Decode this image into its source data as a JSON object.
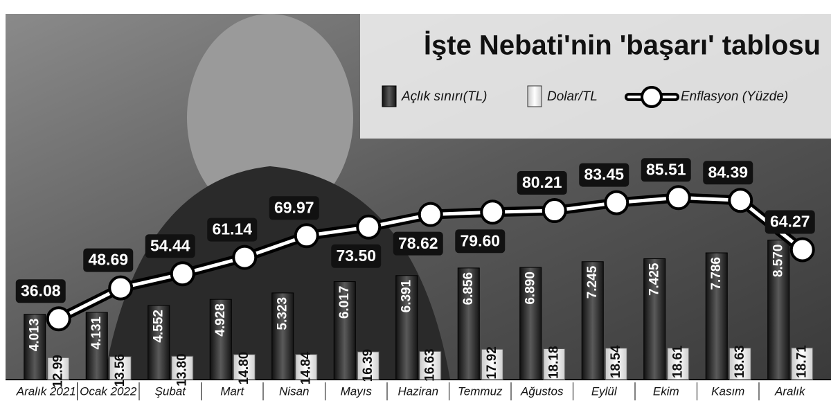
{
  "chart_data": {
    "type": "bar-line",
    "title": "İşte Nebati'nin 'başarı' tablosu",
    "categories": [
      "Aralık 2021",
      "Ocak 2022",
      "Şubat",
      "Mart",
      "Nisan",
      "Mayıs",
      "Haziran",
      "Temmuz",
      "Ağustos",
      "Eylül",
      "Ekim",
      "Kasım",
      "Aralık"
    ],
    "series": [
      {
        "name": "Açlık sınırı(TL)",
        "color": "#2e2e2e",
        "kind": "bar",
        "values": [
          4013,
          4131,
          4552,
          4928,
          5323,
          6017,
          6391,
          6856,
          6890,
          7245,
          7425,
          7786,
          8570
        ],
        "value_labels": [
          "4.013",
          "4.131",
          "4.552",
          "4.928",
          "5.323",
          "6.017",
          "6.391",
          "6.856",
          "6.890",
          "7.245",
          "7.425",
          "7.786",
          "8.570"
        ]
      },
      {
        "name": "Dolar/TL",
        "color": "#e6e6e6",
        "kind": "bar",
        "values": [
          12.99,
          13.56,
          13.8,
          14.8,
          14.84,
          16.39,
          16.63,
          17.92,
          18.18,
          18.54,
          18.61,
          18.63,
          18.71
        ],
        "value_labels": [
          "12.99",
          "13.56",
          "13.80",
          "14.80",
          "14.84",
          "16.39",
          "16.63",
          "17.92",
          "18.18",
          "18.54",
          "18.61",
          "18.63",
          "18.71"
        ]
      },
      {
        "name": "Enflasyon (Yüzde)",
        "color": "#000000",
        "kind": "line",
        "values": [
          36.08,
          48.69,
          54.44,
          61.14,
          69.97,
          73.5,
          78.62,
          79.6,
          80.21,
          83.45,
          85.51,
          84.39,
          64.27
        ],
        "value_labels": [
          "36.08",
          "48.69",
          "54.44",
          "61.14",
          "69.97",
          "73.50",
          "78.62",
          "79.60",
          "80.21",
          "83.45",
          "85.51",
          "84.39",
          "64.27"
        ]
      }
    ]
  }
}
